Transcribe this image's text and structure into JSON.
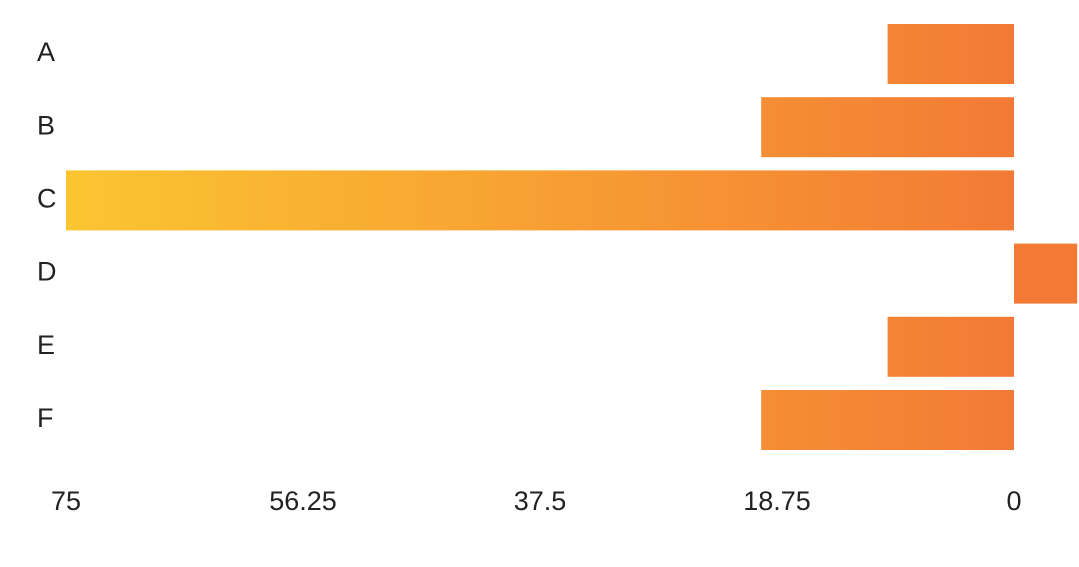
{
  "chart_data": {
    "type": "barh",
    "categories": [
      "A",
      "B",
      "C",
      "D",
      "E",
      "F"
    ],
    "values": [
      10,
      20,
      75,
      -5,
      10,
      20
    ],
    "gradient": [
      "#fbc531",
      "#f37a35"
    ],
    "xlim": [
      75,
      0
    ],
    "xticks": [
      75,
      56.25,
      37.5,
      18.75,
      0
    ]
  }
}
